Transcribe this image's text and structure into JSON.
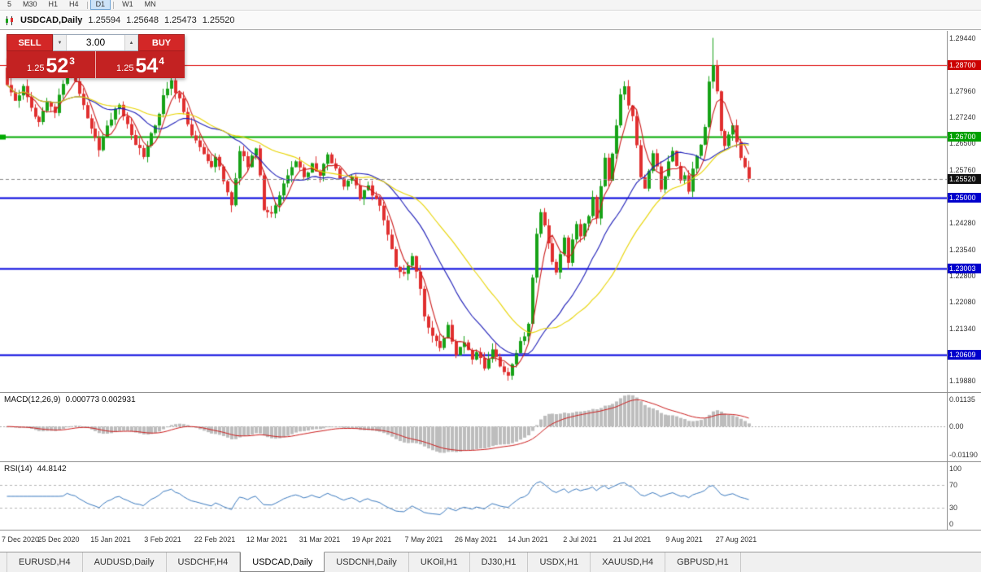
{
  "toolbar": {
    "buttons": [
      {
        "label": "5"
      },
      {
        "label": "M30"
      },
      {
        "label": "H1"
      },
      {
        "label": "H4"
      },
      {
        "label": "D1"
      },
      {
        "label": "W1"
      },
      {
        "label": "MN"
      }
    ],
    "active": "D1"
  },
  "chart_window": {
    "title": "USDCAD,Daily",
    "open": "1.25594",
    "high": "1.25648",
    "low": "1.25473",
    "close": "1.25520"
  },
  "one_click_trading": {
    "sell_label": "SELL",
    "buy_label": "BUY",
    "volume": "3.00",
    "sell_price_main": "1.25",
    "sell_price_big": "52",
    "sell_price_sup": "3",
    "buy_price_main": "1.25",
    "buy_price_big": "54",
    "buy_price_sup": "4"
  },
  "macd_panel": {
    "name": "MACD(12,26,9)",
    "values": "0.000773 0.002931"
  },
  "rsi_panel": {
    "name": "RSI(14)",
    "value": "44.8142"
  },
  "tabs": {
    "active": "USDCAD,Daily",
    "items": [
      {
        "label": "EURUSD,H4"
      },
      {
        "label": "AUDUSD,Daily"
      },
      {
        "label": "USDCHF,H4"
      },
      {
        "label": "USDCAD,Daily"
      },
      {
        "label": "USDCNH,Daily"
      },
      {
        "label": "UKOil,H1"
      },
      {
        "label": "DJ30,H1"
      },
      {
        "label": "USDX,H1"
      },
      {
        "label": "XAUUSD,H4"
      },
      {
        "label": "GBPUSD,H1"
      }
    ]
  },
  "chart_data": {
    "type": "candlestick",
    "symbol": "USDCAD",
    "timeframe": "Daily",
    "num_candles": 186,
    "candles_per_label": 13,
    "first_open": 1.2862,
    "last_close": 1.2552,
    "current_price": 1.2552,
    "y_range": [
      1.1988,
      1.2944
    ],
    "close_keypoints": [
      [
        0,
        1.282
      ],
      [
        2,
        1.2768
      ],
      [
        4,
        1.2812
      ],
      [
        6,
        1.2752
      ],
      [
        8,
        1.2708
      ],
      [
        10,
        1.2772
      ],
      [
        12,
        1.273
      ],
      [
        13,
        1.279
      ],
      [
        15,
        1.2848
      ],
      [
        17,
        1.2828
      ],
      [
        19,
        1.276
      ],
      [
        21,
        1.2692
      ],
      [
        23,
        1.2638
      ],
      [
        25,
        1.27
      ],
      [
        26,
        1.2722
      ],
      [
        28,
        1.276
      ],
      [
        30,
        1.27
      ],
      [
        32,
        1.2652
      ],
      [
        34,
        1.2618
      ],
      [
        36,
        1.268
      ],
      [
        38,
        1.2732
      ],
      [
        39,
        1.278
      ],
      [
        41,
        1.2822
      ],
      [
        43,
        1.277
      ],
      [
        45,
        1.27
      ],
      [
        47,
        1.2658
      ],
      [
        49,
        1.2622
      ],
      [
        51,
        1.258
      ],
      [
        52,
        1.2612
      ],
      [
        54,
        1.255
      ],
      [
        56,
        1.2478
      ],
      [
        58,
        1.263
      ],
      [
        60,
        1.259
      ],
      [
        62,
        1.2642
      ],
      [
        64,
        1.247
      ],
      [
        66,
        1.245
      ],
      [
        68,
        1.2505
      ],
      [
        70,
        1.2562
      ],
      [
        72,
        1.26
      ],
      [
        74,
        1.2558
      ],
      [
        76,
        1.2592
      ],
      [
        78,
        1.2562
      ],
      [
        80,
        1.262
      ],
      [
        82,
        1.258
      ],
      [
        84,
        1.2532
      ],
      [
        86,
        1.2562
      ],
      [
        88,
        1.2502
      ],
      [
        90,
        1.2532
      ],
      [
        91,
        1.2502
      ],
      [
        93,
        1.2478
      ],
      [
        95,
        1.239
      ],
      [
        97,
        1.231
      ],
      [
        99,
        1.2282
      ],
      [
        101,
        1.233
      ],
      [
        103,
        1.225
      ],
      [
        104,
        1.2172
      ],
      [
        106,
        1.2112
      ],
      [
        108,
        1.2082
      ],
      [
        110,
        1.214
      ],
      [
        112,
        1.2062
      ],
      [
        114,
        1.21
      ],
      [
        116,
        1.2048
      ],
      [
        117,
        1.2072
      ],
      [
        119,
        1.2022
      ],
      [
        121,
        1.2078
      ],
      [
        123,
        1.2032
      ],
      [
        125,
        1.2002
      ],
      [
        127,
        1.2068
      ],
      [
        129,
        1.2118
      ],
      [
        130,
        1.2142
      ],
      [
        131,
        1.228
      ],
      [
        132,
        1.24
      ],
      [
        133,
        1.2462
      ],
      [
        134,
        1.242
      ],
      [
        135,
        1.2372
      ],
      [
        136,
        1.232
      ],
      [
        137,
        1.2292
      ],
      [
        138,
        1.2342
      ],
      [
        139,
        1.239
      ],
      [
        140,
        1.2312
      ],
      [
        141,
        1.238
      ],
      [
        142,
        1.242
      ],
      [
        143,
        1.2392
      ],
      [
        145,
        1.2452
      ],
      [
        146,
        1.25
      ],
      [
        147,
        1.2442
      ],
      [
        148,
        1.253
      ],
      [
        149,
        1.261
      ],
      [
        150,
        1.2552
      ],
      [
        151,
        1.2622
      ],
      [
        152,
        1.27
      ],
      [
        153,
        1.2792
      ],
      [
        154,
        1.281
      ],
      [
        155,
        1.2762
      ],
      [
        156,
        1.273
      ],
      [
        157,
        1.264
      ],
      [
        158,
        1.2562
      ],
      [
        159,
        1.2522
      ],
      [
        160,
        1.2572
      ],
      [
        161,
        1.262
      ],
      [
        162,
        1.2582
      ],
      [
        163,
        1.2522
      ],
      [
        164,
        1.2562
      ],
      [
        165,
        1.26
      ],
      [
        166,
        1.2632
      ],
      [
        167,
        1.2582
      ],
      [
        168,
        1.2542
      ],
      [
        169,
        1.2562
      ],
      [
        170,
        1.2522
      ],
      [
        171,
        1.2582
      ],
      [
        172,
        1.262
      ],
      [
        173,
        1.2652
      ],
      [
        174,
        1.27
      ],
      [
        175,
        1.282
      ],
      [
        176,
        1.287
      ],
      [
        177,
        1.279
      ],
      [
        178,
        1.268
      ],
      [
        179,
        1.264
      ],
      [
        180,
        1.268
      ],
      [
        181,
        1.27
      ],
      [
        182,
        1.265
      ],
      [
        183,
        1.261
      ],
      [
        184,
        1.258
      ],
      [
        185,
        1.2552
      ]
    ],
    "wick_overrides": [
      [
        0,
        1.2888,
        null
      ],
      [
        176,
        1.2945,
        null
      ]
    ],
    "levels": [
      {
        "price": 1.287,
        "color": "#dd0000",
        "width": 1,
        "marker": false
      },
      {
        "price": 1.267,
        "color": "#00aa00",
        "width": 2,
        "marker": true
      },
      {
        "price": 1.25,
        "color": "#0000dd",
        "width": 2,
        "marker": false
      },
      {
        "price": 1.23003,
        "color": "#0000dd",
        "width": 2,
        "marker": false
      },
      {
        "price": 1.20609,
        "color": "#0000dd",
        "width": 2,
        "marker": false
      }
    ],
    "y_axis_labels": [
      "1.29440",
      "1.27960",
      "1.27240",
      "1.26500",
      "1.25760",
      "1.24280",
      "1.23540",
      "1.22800",
      "1.22080",
      "1.21340",
      "1.19880"
    ],
    "price_badges": [
      {
        "label": "1.28700",
        "price": 1.287,
        "color": "#cc0000"
      },
      {
        "label": "1.26700",
        "price": 1.267,
        "color": "#00a000"
      },
      {
        "label": "1.25520",
        "price": 1.2552,
        "color": "#101010"
      },
      {
        "label": "1.25000",
        "price": 1.25,
        "color": "#0000cc"
      },
      {
        "label": "1.23003",
        "price": 1.23003,
        "color": "#0000cc"
      },
      {
        "label": "1.20609",
        "price": 1.20609,
        "color": "#0000cc"
      }
    ],
    "x_labels": [
      "7 Dec 2020",
      "25 Dec 2020",
      "15 Jan 2021",
      "3 Feb 2021",
      "22 Feb 2021",
      "12 Mar 2021",
      "31 Mar 2021",
      "19 Apr 2021",
      "7 May 2021",
      "26 May 2021",
      "14 Jun 2021",
      "2 Jul 2021",
      "21 Jul 2021",
      "9 Aug 2021",
      "27 Aug 2021"
    ],
    "moving_averages": [
      {
        "period": 5,
        "color": "#cc1d1d"
      },
      {
        "period": 20,
        "color": "#1d1db8"
      },
      {
        "period": 34,
        "color": "#e8d400"
      }
    ],
    "macd_axis": {
      "max": 0.01135,
      "min": -0.0119,
      "labels": [
        "0.01135",
        "0.00",
        "-0.01190"
      ]
    },
    "rsi_axis": {
      "labels": [
        "100",
        "70",
        "30",
        "0"
      ],
      "levels": [
        70,
        30
      ]
    },
    "colors": {
      "up": "#17a217",
      "down": "#e02f2f",
      "macd_bar": "#bdbdbd",
      "macd_signal": "#cc1d1d",
      "rsi_line": "#3b7abf"
    }
  }
}
